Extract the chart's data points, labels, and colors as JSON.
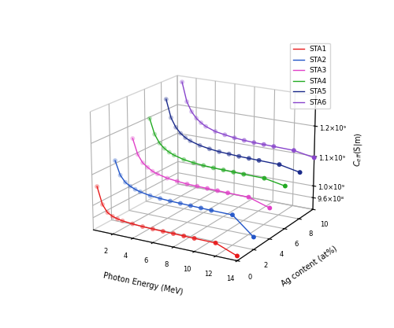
{
  "series": {
    "STA1": {
      "ag_content": 0,
      "color": "#e8191a",
      "photon_energy": [
        0.5,
        1.0,
        1.5,
        2.0,
        2.5,
        3.0,
        4.0,
        5.0,
        6.0,
        7.0,
        8.0,
        9.0,
        10.0,
        12.0,
        14.0
      ],
      "ceff": [
        1065000000.0,
        1010000000.0,
        987000000.0,
        978000000.0,
        973000000.0,
        970000000.0,
        967000000.0,
        965000000.0,
        964000000.0,
        963500000.0,
        963000000.0,
        962500000.0,
        962000000.0,
        961500000.0,
        935000000.0
      ]
    },
    "STA2": {
      "ag_content": 2,
      "color": "#2255c8",
      "photon_energy": [
        0.5,
        1.0,
        1.5,
        2.0,
        2.5,
        3.0,
        4.0,
        5.0,
        6.0,
        7.0,
        8.0,
        9.0,
        10.0,
        12.0,
        14.0
      ],
      "ceff": [
        1120000000.0,
        1075000000.0,
        1055000000.0,
        1045000000.0,
        1038000000.0,
        1033000000.0,
        1027000000.0,
        1024000000.0,
        1022000000.0,
        1021000000.0,
        1020000000.0,
        1019000000.0,
        1018000000.0,
        1017000000.0,
        960000000.0
      ]
    },
    "STA3": {
      "ag_content": 4,
      "color": "#e040c8",
      "photon_energy": [
        0.5,
        1.0,
        1.5,
        2.0,
        2.5,
        3.0,
        4.0,
        5.0,
        6.0,
        7.0,
        8.0,
        9.0,
        10.0,
        12.0,
        14.0
      ],
      "ceff": [
        1165000000.0,
        1115000000.0,
        1090000000.0,
        1078000000.0,
        1068000000.0,
        1062000000.0,
        1054000000.0,
        1050000000.0,
        1047000000.0,
        1046000000.0,
        1045000000.0,
        1044000000.0,
        1043000000.0,
        1042000000.0,
        1020000000.0
      ]
    },
    "STA4": {
      "ag_content": 6,
      "color": "#22aa22",
      "photon_energy": [
        0.5,
        1.0,
        1.5,
        2.0,
        2.5,
        3.0,
        4.0,
        5.0,
        6.0,
        7.0,
        8.0,
        9.0,
        10.0,
        12.0,
        14.0
      ],
      "ceff": [
        1205000000.0,
        1155000000.0,
        1128000000.0,
        1113000000.0,
        1103000000.0,
        1096000000.0,
        1087000000.0,
        1082000000.0,
        1079000000.0,
        1077000000.0,
        1076000000.0,
        1075000000.0,
        1074000000.0,
        1073000000.0,
        1060000000.0
      ]
    },
    "STA5": {
      "ag_content": 8,
      "color": "#1a2a8a",
      "photon_energy": [
        0.5,
        1.0,
        1.5,
        2.0,
        2.5,
        3.0,
        4.0,
        5.0,
        6.0,
        7.0,
        8.0,
        9.0,
        10.0,
        12.0,
        14.0
      ],
      "ceff": [
        1245000000.0,
        1185000000.0,
        1155000000.0,
        1137000000.0,
        1125000000.0,
        1117000000.0,
        1107000000.0,
        1101000000.0,
        1097000000.0,
        1095000000.0,
        1093000000.0,
        1092000000.0,
        1091000000.0,
        1089000000.0,
        1075000000.0
      ]
    },
    "STA6": {
      "ag_content": 10,
      "color": "#8844cc",
      "photon_energy": [
        0.5,
        1.0,
        1.5,
        2.0,
        2.5,
        3.0,
        4.0,
        5.0,
        6.0,
        7.0,
        8.0,
        9.0,
        10.0,
        12.0,
        14.0
      ],
      "ceff": [
        1280000000.0,
        1215000000.0,
        1183000000.0,
        1163000000.0,
        1150000000.0,
        1140000000.0,
        1128000000.0,
        1122000000.0,
        1117000000.0,
        1114000000.0,
        1112000000.0,
        1111000000.0,
        1110000000.0,
        1108000000.0,
        1095000000.0
      ]
    }
  },
  "xlabel": "Photon Energy (MeV)",
  "ylabel": "Ag content (at%)",
  "zlabel": "C$_{eff}$(S|m)",
  "xlim": [
    0,
    14
  ],
  "ylim": [
    0,
    10
  ],
  "zlim": [
    920000000.0,
    1300000000.0
  ],
  "xticks": [
    2,
    4,
    6,
    8,
    10,
    12,
    14
  ],
  "yticks": [
    0,
    2,
    4,
    6,
    8,
    10
  ],
  "zticks": [
    960000000.0,
    1000000000.0,
    1100000000.0,
    1200000000.0
  ],
  "ztick_labels": [
    "9.6×10⁸",
    "1.0×10⁹",
    "1.1×10⁹",
    "1.2×10⁹"
  ],
  "elev": 18,
  "azim": -60
}
